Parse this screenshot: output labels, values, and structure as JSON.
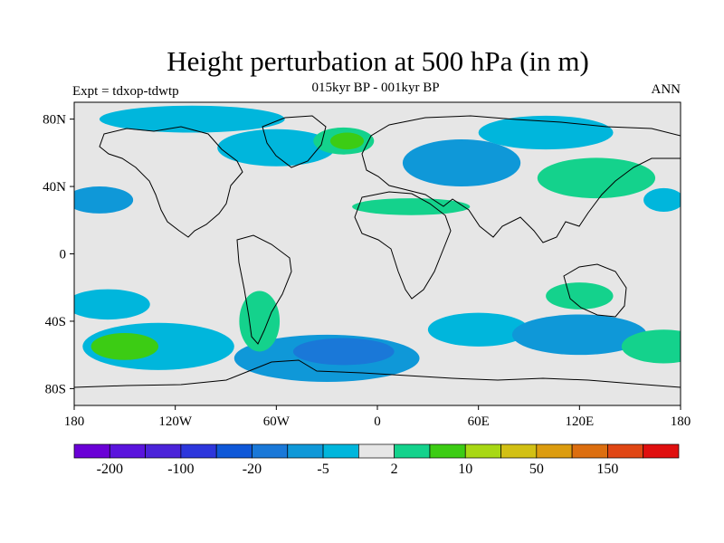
{
  "plot": {
    "title": "Height perturbation at 500 hPa (in m)",
    "subtitle": "015kyr BP - 001kyr BP",
    "left_string": "Expt = tdxop-tdwtp",
    "right_string": "ANN",
    "background_color": "#e6e6e6",
    "missing_color": "#e6e6e6"
  },
  "axes": {
    "lon_range": [
      -180,
      180
    ],
    "lat_range": [
      -90,
      90
    ],
    "y_ticks": [
      {
        "lat": 80,
        "label": "80N"
      },
      {
        "lat": 40,
        "label": "40N"
      },
      {
        "lat": 0,
        "label": "0"
      },
      {
        "lat": -40,
        "label": "40S"
      },
      {
        "lat": -80,
        "label": "80S"
      }
    ],
    "x_ticks": [
      {
        "lon": -180,
        "label": "180"
      },
      {
        "lon": -120,
        "label": "120W"
      },
      {
        "lon": -60,
        "label": "60W"
      },
      {
        "lon": 0,
        "label": "0"
      },
      {
        "lon": 60,
        "label": "60E"
      },
      {
        "lon": 120,
        "label": "120E"
      },
      {
        "lon": 180,
        "label": "180"
      }
    ]
  },
  "colorbar": {
    "colors": [
      "#6a00d6",
      "#5a14dd",
      "#4b23d9",
      "#2d36dc",
      "#0f58d8",
      "#1a78d8",
      "#0f98d8",
      "#00b6dc",
      "#e6e6e6",
      "#14d28c",
      "#3ccc14",
      "#a8d814",
      "#d2c014",
      "#dc9c0f",
      "#dc6e0f",
      "#e04614",
      "#e00f0f"
    ],
    "labels": [
      {
        "after_box": 1,
        "text": "-200"
      },
      {
        "after_box": 3,
        "text": "-100"
      },
      {
        "after_box": 5,
        "text": "-20"
      },
      {
        "after_box": 7,
        "text": "-5"
      },
      {
        "after_box": 9,
        "text": "2"
      },
      {
        "after_box": 11,
        "text": "10"
      },
      {
        "after_box": 13,
        "text": "50"
      },
      {
        "after_box": 15,
        "text": "150"
      }
    ]
  },
  "field_anomalies": [
    {
      "lon": -60,
      "lat": 63,
      "rx": 35,
      "ry": 11,
      "level": -1
    },
    {
      "lon": -20,
      "lat": 67,
      "rx": 18,
      "ry": 8,
      "level": 1
    },
    {
      "lon": -18,
      "lat": 67,
      "rx": 10,
      "ry": 5,
      "level": 2
    },
    {
      "lon": 50,
      "lat": 54,
      "rx": 35,
      "ry": 14,
      "level": -2
    },
    {
      "lon": 100,
      "lat": 72,
      "rx": 40,
      "ry": 10,
      "level": -1
    },
    {
      "lon": -110,
      "lat": 80,
      "rx": 55,
      "ry": 8,
      "level": -1
    },
    {
      "lon": 130,
      "lat": 45,
      "rx": 35,
      "ry": 12,
      "level": 1
    },
    {
      "lon": -165,
      "lat": 32,
      "rx": 20,
      "ry": 8,
      "level": -2
    },
    {
      "lon": 170,
      "lat": 32,
      "rx": 12,
      "ry": 7,
      "level": -1
    },
    {
      "lon": 20,
      "lat": 28,
      "rx": 35,
      "ry": 5,
      "level": 1
    },
    {
      "lon": -160,
      "lat": -30,
      "rx": 25,
      "ry": 9,
      "level": -1
    },
    {
      "lon": -130,
      "lat": -55,
      "rx": 45,
      "ry": 14,
      "level": -1
    },
    {
      "lon": -150,
      "lat": -55,
      "rx": 20,
      "ry": 8,
      "level": 2
    },
    {
      "lon": -30,
      "lat": -62,
      "rx": 55,
      "ry": 14,
      "level": -2
    },
    {
      "lon": -20,
      "lat": -58,
      "rx": 30,
      "ry": 8,
      "level": -3
    },
    {
      "lon": 60,
      "lat": -45,
      "rx": 30,
      "ry": 10,
      "level": -1
    },
    {
      "lon": 120,
      "lat": -48,
      "rx": 40,
      "ry": 12,
      "level": -2
    },
    {
      "lon": 120,
      "lat": -25,
      "rx": 20,
      "ry": 8,
      "level": 1
    },
    {
      "lon": 170,
      "lat": -55,
      "rx": 25,
      "ry": 10,
      "level": 1
    },
    {
      "lon": -70,
      "lat": -40,
      "rx": 12,
      "ry": 18,
      "level": 1
    }
  ]
}
